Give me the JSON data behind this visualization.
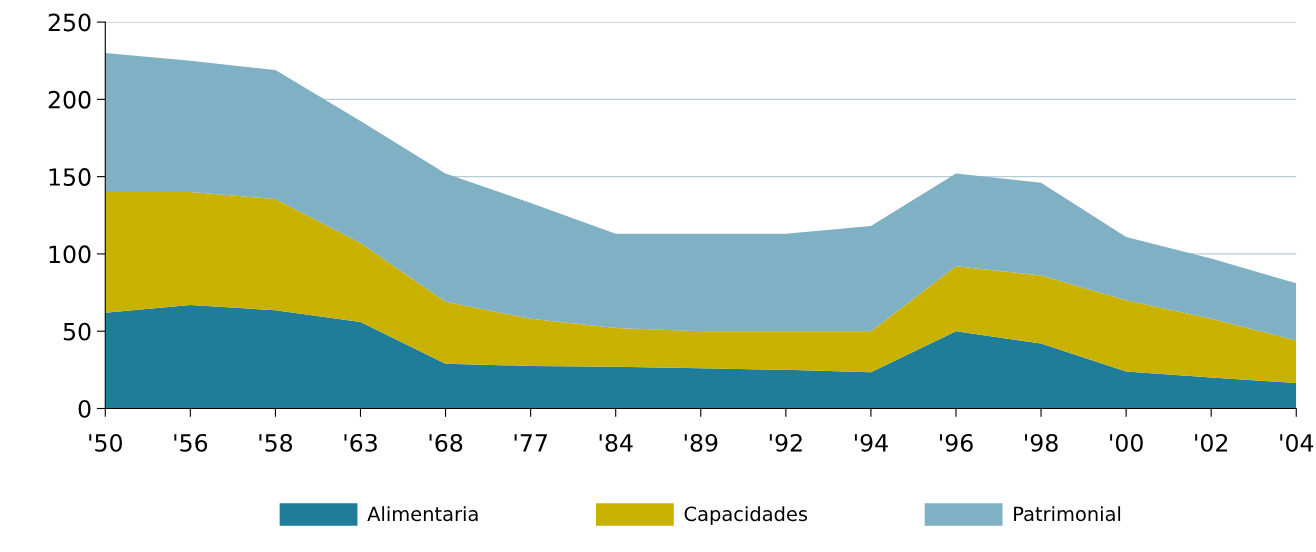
{
  "chart_data": {
    "type": "area",
    "stacked": true,
    "categories": [
      "'50",
      "'56",
      "'58",
      "'63",
      "'68",
      "'77",
      "'84",
      "'89",
      "'92",
      "'94",
      "'96",
      "'98",
      "'00",
      "'02",
      "'04"
    ],
    "series": [
      {
        "name": "Alimentaria",
        "color": "#1f7d99",
        "values": [
          62,
          67,
          63.5,
          56,
          29,
          27.5,
          27,
          26,
          25,
          23.5,
          50,
          42,
          24,
          20,
          16.5
        ]
      },
      {
        "name": "Capacidades",
        "color": "#c9b100",
        "values": [
          78,
          73,
          72,
          51,
          40,
          30.5,
          25,
          24,
          25,
          26.5,
          42,
          44,
          46,
          38,
          27.5
        ]
      },
      {
        "name": "Patrimonial",
        "color": "#7fb0c4",
        "values": [
          90,
          85,
          83.5,
          79,
          83,
          75,
          61,
          63,
          63,
          68,
          60,
          60,
          41,
          39,
          37
        ]
      }
    ],
    "ylim": [
      0,
      250
    ],
    "yticks": [
      0,
      50,
      100,
      150,
      200,
      250
    ],
    "grid": "y",
    "legend": "bottom"
  }
}
